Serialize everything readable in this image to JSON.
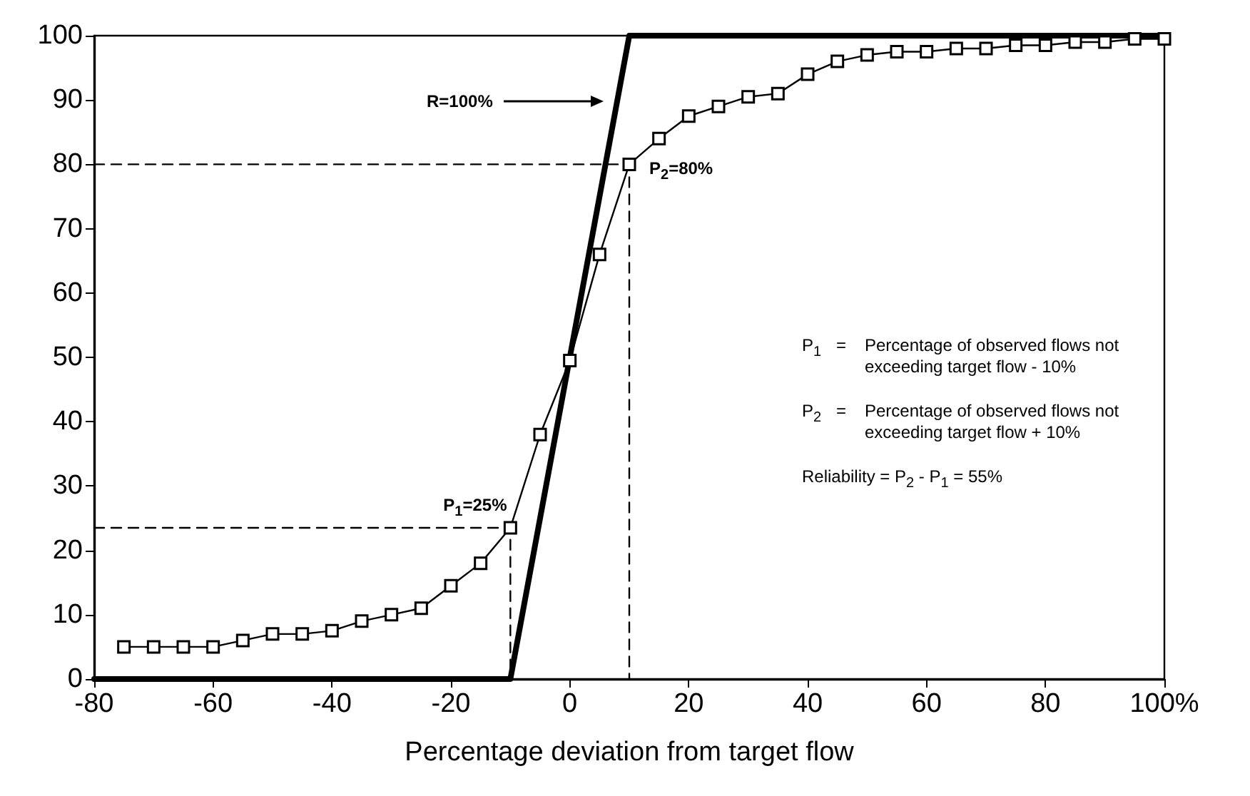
{
  "chart_data": {
    "type": "line",
    "xlabel": "Percentage deviation from target flow",
    "xlim": [
      -80,
      100
    ],
    "xticks": [
      -80,
      -60,
      -40,
      -20,
      0,
      20,
      40,
      60,
      80,
      {
        "value": 100,
        "label": "100%"
      }
    ],
    "ylim": [
      0,
      100
    ],
    "yticks": [
      0,
      10,
      20,
      30,
      40,
      50,
      60,
      70,
      80,
      90,
      100
    ],
    "grid": false,
    "series": [
      {
        "color": "#000000",
        "marker": "none",
        "line_style": "solid",
        "x": [
          -80,
          -10,
          10,
          100
        ],
        "values": [
          0,
          0,
          100,
          100
        ]
      },
      {
        "color": "#000000",
        "marker": "square",
        "line_style": "solid",
        "x": [
          -75,
          -70,
          -65,
          -60,
          -55,
          -50,
          -45,
          -40,
          -35,
          -30,
          -25,
          -20,
          -15,
          -10,
          -5,
          0,
          5,
          10,
          15,
          20,
          25,
          30,
          35,
          40,
          45,
          50,
          55,
          60,
          65,
          70,
          75,
          80,
          85,
          90,
          95,
          100
        ],
        "values": [
          5,
          5,
          5,
          5,
          6,
          7,
          7,
          7.5,
          9,
          10,
          11,
          14.5,
          18,
          23.5,
          38,
          49.5,
          66,
          80,
          84,
          87.5,
          89,
          90.5,
          91,
          94,
          96,
          97,
          97.5,
          97.5,
          98,
          98,
          98.5,
          98.5,
          99,
          99,
          99.5,
          99.5
        ]
      },
      {
        "color": "#000000",
        "marker": "none",
        "line_style": "dashed",
        "x": [
          -80,
          -10,
          -10
        ],
        "values": [
          23.5,
          23.5,
          0
        ]
      },
      {
        "color": "#000000",
        "marker": "none",
        "line_style": "dashed",
        "x": [
          -80,
          10,
          10
        ],
        "values": [
          80,
          80,
          0
        ]
      }
    ],
    "annotations": [
      "R=100%",
      {
        "text": "P$_{1}$=25%",
        "x": -10,
        "y": 23.5
      },
      {
        "text": "P$_{2}$=80%",
        "x": 10,
        "y": 80
      },
      "P$_{1}$ = Percentage of observed flows not exceeding target flow - 10%",
      "P$_{2}$ = Percentage of observed flows not exceeding target flow + 10%",
      "Reliability = P$_{2}$ - P$_{1}$ = 55%"
    ]
  }
}
